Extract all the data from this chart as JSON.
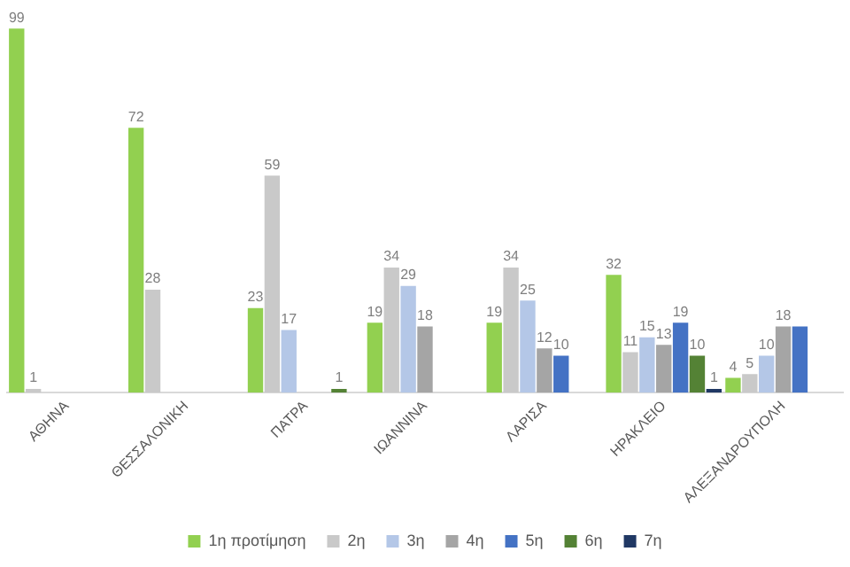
{
  "chart_data": {
    "type": "bar",
    "categories": [
      "ΑΘΗΝΑ",
      "ΘΕΣΣΑΛΟΝΙΚΗ",
      "ΠΑΤΡΑ",
      "ΙΩΑΝΝΙΝΑ",
      "ΛΑΡΙΣΑ",
      "ΗΡΑΚΛΕΙΟ",
      "ΑΛΕΞΑΝΔΡΟΥΠΟΛΗ"
    ],
    "legend": "bottom",
    "grid": false,
    "series": [
      {
        "name": "1η προτίμηση",
        "color": "#92d050",
        "values": [
          99,
          72,
          23,
          19,
          19,
          32,
          4
        ],
        "value_labels": [
          "99",
          "72",
          "23",
          "19",
          "19",
          "32",
          "4"
        ]
      },
      {
        "name": "2η",
        "color": "#c9c9c9",
        "values": [
          1,
          28,
          59,
          34,
          34,
          11,
          5
        ],
        "value_labels": [
          "1",
          "28",
          "59",
          "34",
          "34",
          "11",
          "5"
        ]
      },
      {
        "name": "3η",
        "color": "#b4c7e7",
        "values": [
          null,
          null,
          17,
          29,
          25,
          15,
          10
        ],
        "value_labels": [
          null,
          null,
          "17",
          "29",
          "25",
          "15",
          "10"
        ]
      },
      {
        "name": "4η",
        "color": "#a5a5a5",
        "values": [
          null,
          null,
          null,
          18,
          12,
          13,
          18
        ],
        "value_labels": [
          null,
          null,
          null,
          "18",
          "12",
          "13",
          "18"
        ]
      },
      {
        "name": "5η",
        "color": "#4472c4",
        "values": [
          null,
          null,
          null,
          null,
          10,
          19,
          18
        ],
        "value_labels": [
          null,
          null,
          null,
          null,
          "10",
          "19",
          null
        ]
      },
      {
        "name": "6η",
        "color": "#548235",
        "values": [
          null,
          null,
          1,
          null,
          null,
          10,
          null
        ],
        "value_labels": [
          null,
          null,
          "1",
          null,
          null,
          "10",
          null
        ]
      },
      {
        "name": "7η",
        "color": "#203864",
        "values": [
          null,
          null,
          null,
          null,
          null,
          1,
          null
        ],
        "value_labels": [
          null,
          null,
          null,
          null,
          null,
          "1",
          null
        ]
      }
    ]
  }
}
